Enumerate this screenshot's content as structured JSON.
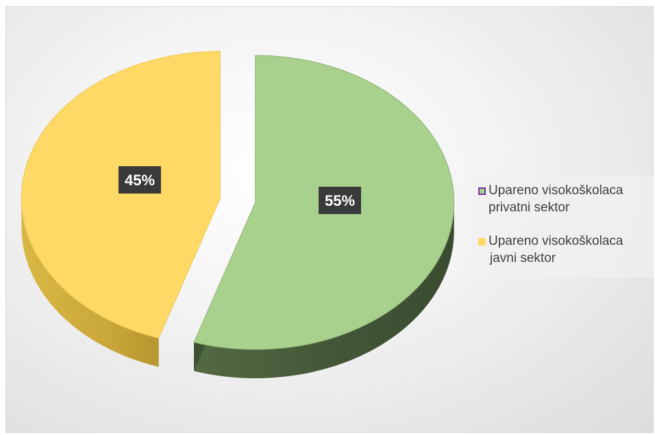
{
  "chart_data": {
    "type": "pie",
    "title": "",
    "categories": [
      "Upareno visokoškolaca privatni sektor",
      "Upareno visokoškolaca javni sektor"
    ],
    "values": [
      55,
      45
    ],
    "data_labels": [
      "55%",
      "45%"
    ],
    "colors": [
      "#a9d18e",
      "#ffd966"
    ],
    "legend_placement": "right",
    "style": "3d-exploded",
    "legend": [
      {
        "line1": "Upareno visokoškolaca",
        "line2": "privatni sektor",
        "swatch_fill": "#a9d18e",
        "swatch_border": "#7030a0"
      },
      {
        "line1": "Upareno visokoškolaca",
        "line2": "javni sektor",
        "swatch_fill": "#ffd966",
        "swatch_border": "#ffd966"
      }
    ]
  }
}
